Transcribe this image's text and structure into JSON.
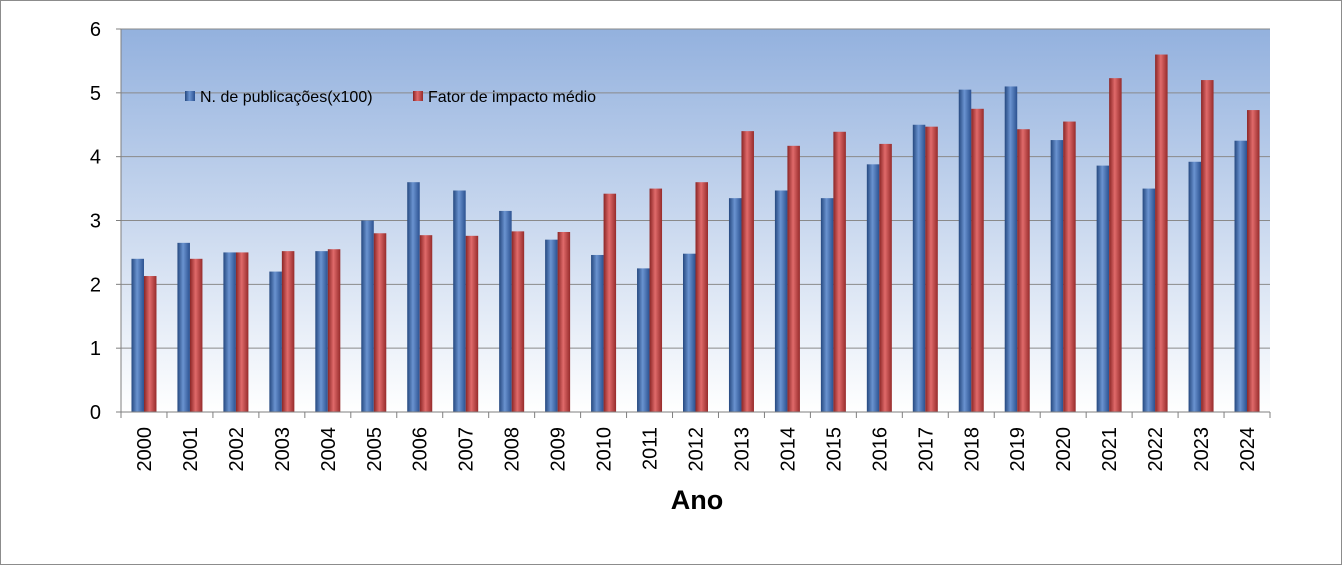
{
  "chart_data": {
    "type": "bar",
    "title": "",
    "xlabel": "Ano",
    "ylabel": "",
    "ylim": [
      0,
      6
    ],
    "yticks": [
      "0",
      "1",
      "2",
      "3",
      "4",
      "5",
      "6"
    ],
    "categories": [
      "2000",
      "2001",
      "2002",
      "2003",
      "2004",
      "2005",
      "2006",
      "2007",
      "2008",
      "2009",
      "2010",
      "2011",
      "2012",
      "2013",
      "2014",
      "2015",
      "2016",
      "2017",
      "2018",
      "2019",
      "2020",
      "2021",
      "2022",
      "2023",
      "2024"
    ],
    "series": [
      {
        "name": "N. de publicações(x100)",
        "color": "#3c64a4",
        "values": [
          2.4,
          2.65,
          2.5,
          2.2,
          2.52,
          3.0,
          3.6,
          3.47,
          3.15,
          2.7,
          2.46,
          2.25,
          2.48,
          3.35,
          3.47,
          3.35,
          3.88,
          4.5,
          5.05,
          5.1,
          4.26,
          3.86,
          3.5,
          3.92,
          4.25
        ]
      },
      {
        "name": "Fator de impacto médio",
        "color": "#b83a3a",
        "values": [
          2.13,
          2.4,
          2.5,
          2.52,
          2.55,
          2.8,
          2.77,
          2.76,
          2.83,
          2.82,
          3.42,
          3.5,
          3.6,
          4.4,
          4.17,
          4.39,
          4.2,
          4.47,
          4.75,
          4.43,
          4.55,
          5.23,
          5.6,
          5.2,
          4.73
        ]
      }
    ],
    "legend_position": "top-left",
    "grid": true
  }
}
